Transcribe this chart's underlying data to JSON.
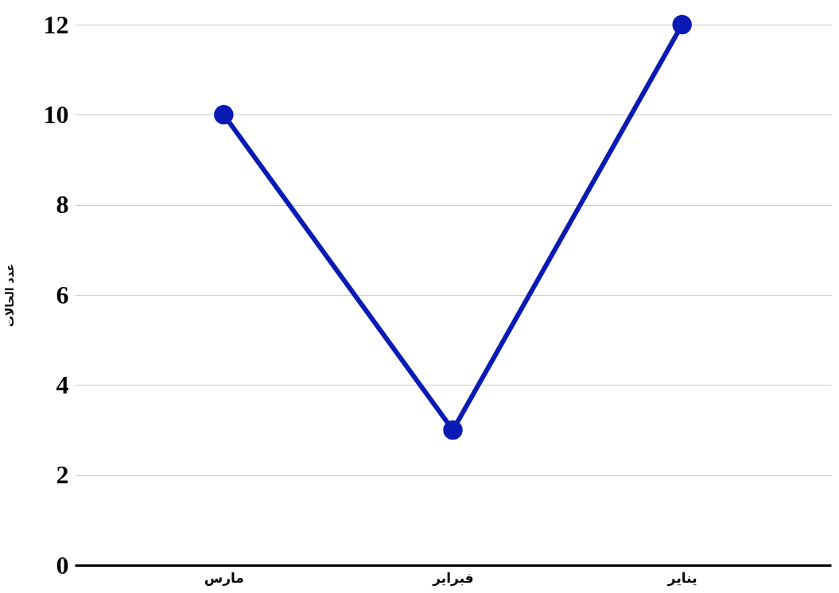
{
  "chart_data": {
    "type": "line",
    "ylabel": "عدد الحالات",
    "categories": [
      "مارس",
      "فبراير",
      "يناير"
    ],
    "series": [
      {
        "color": "#0a1ab4",
        "values": [
          10,
          3,
          12
        ]
      }
    ],
    "ylim": [
      0,
      12
    ],
    "yticks": [
      0,
      2,
      4,
      6,
      8,
      10,
      12
    ],
    "grid": "y",
    "marker": "circle",
    "line_style": "solid"
  }
}
